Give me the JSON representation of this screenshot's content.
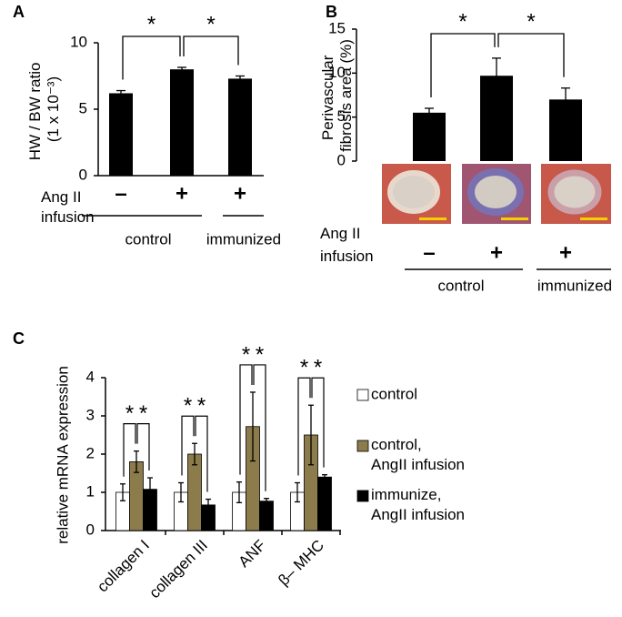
{
  "chart_data": [
    {
      "type": "bar",
      "panel_label": "A",
      "ylabel": "HW / BW ratio (1 x 10⁻³)",
      "categories": [
        "–",
        "+",
        "+"
      ],
      "values": [
        6.2,
        8.0,
        7.3
      ],
      "errors": [
        0.2,
        0.15,
        0.2
      ],
      "color": "#000000",
      "ylim": [
        0,
        10
      ],
      "yticks": [
        0,
        5,
        10
      ],
      "row_label": "Ang II infusion",
      "groups": [
        "control",
        "immunized"
      ],
      "annotations": [
        "*",
        "*"
      ]
    },
    {
      "type": "bar",
      "panel_label": "B",
      "ylabel": "Perivascular fibrosis area (%)",
      "categories": [
        "–",
        "+",
        "+"
      ],
      "values": [
        5.5,
        9.7,
        7.0
      ],
      "errors": [
        0.5,
        2.0,
        1.3
      ],
      "color": "#000000",
      "ylim": [
        0,
        15
      ],
      "yticks": [
        0,
        5,
        10,
        15
      ],
      "row_label": "Ang II infusion",
      "groups": [
        "control",
        "immunized"
      ],
      "annotations": [
        "*",
        "*"
      ]
    },
    {
      "type": "grouped_bar",
      "panel_label": "C",
      "ylabel": "relative mRNA expression",
      "categories": [
        "collagen I",
        "collagen III",
        "ANF",
        "β– MHC"
      ],
      "series": [
        {
          "name": "control",
          "color": "#ffffff",
          "values": [
            1.0,
            1.0,
            1.0,
            1.0
          ],
          "errors": [
            0.22,
            0.25,
            0.27,
            0.25
          ]
        },
        {
          "name": "control, AngII infusion",
          "color": "#8c7b4b",
          "values": [
            1.8,
            2.0,
            2.72,
            2.5
          ],
          "errors": [
            0.28,
            0.28,
            0.9,
            0.78
          ]
        },
        {
          "name": "immunize, AngII infusion",
          "color": "#000000",
          "values": [
            1.08,
            0.67,
            0.77,
            1.4
          ],
          "errors": [
            0.3,
            0.15,
            0.07,
            0.06
          ]
        }
      ],
      "ylim": [
        0,
        4
      ],
      "yticks": [
        0,
        1,
        2,
        3,
        4
      ],
      "annotations": [
        "*",
        "*",
        "*",
        "*",
        "*",
        "*",
        "*",
        "*"
      ]
    }
  ]
}
